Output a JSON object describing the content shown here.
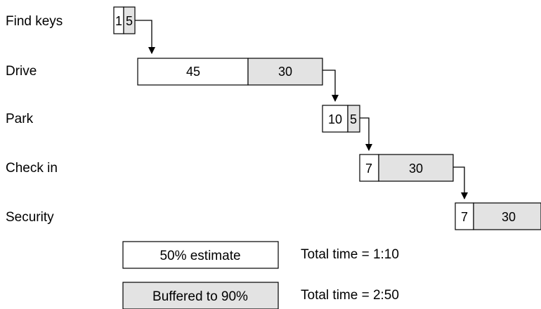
{
  "tasks": [
    {
      "label": "Find keys",
      "estimate": "1",
      "buffer": "5"
    },
    {
      "label": "Drive",
      "estimate": "45",
      "buffer": "30"
    },
    {
      "label": "Park",
      "estimate": "10",
      "buffer": "5"
    },
    {
      "label": "Check in",
      "estimate": "7",
      "buffer": "30"
    },
    {
      "label": "Security",
      "estimate": "7",
      "buffer": "30"
    }
  ],
  "legend": {
    "estimate_label": "50% estimate",
    "buffered_label": "Buffered to 90%",
    "estimate_total": "Total time = 1:10",
    "buffered_total": "Total time = 2:50"
  },
  "colors": {
    "estimate_fill": "#ffffff",
    "buffer_fill": "#e3e3e3",
    "stroke": "#000000"
  }
}
